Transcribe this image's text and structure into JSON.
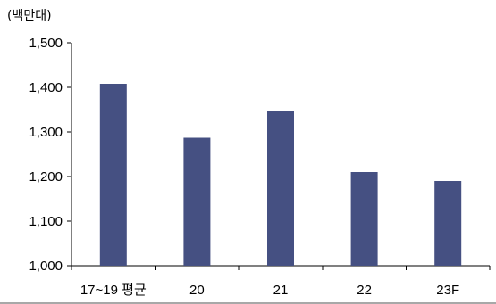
{
  "chart_data": {
    "type": "bar",
    "unit": "(백만대)",
    "categories": [
      "17~19 평균",
      "20",
      "21",
      "22",
      "23F"
    ],
    "values": [
      1408,
      1287,
      1347,
      1210,
      1190
    ],
    "ylim": [
      1000,
      1500
    ],
    "yticks": [
      1000,
      1100,
      1200,
      1300,
      1400,
      1500
    ],
    "ytick_labels": [
      "1,000",
      "1,100",
      "1,200",
      "1,300",
      "1,400",
      "1,500"
    ],
    "bar_color": "#455082",
    "grid": false,
    "legend": "none"
  }
}
